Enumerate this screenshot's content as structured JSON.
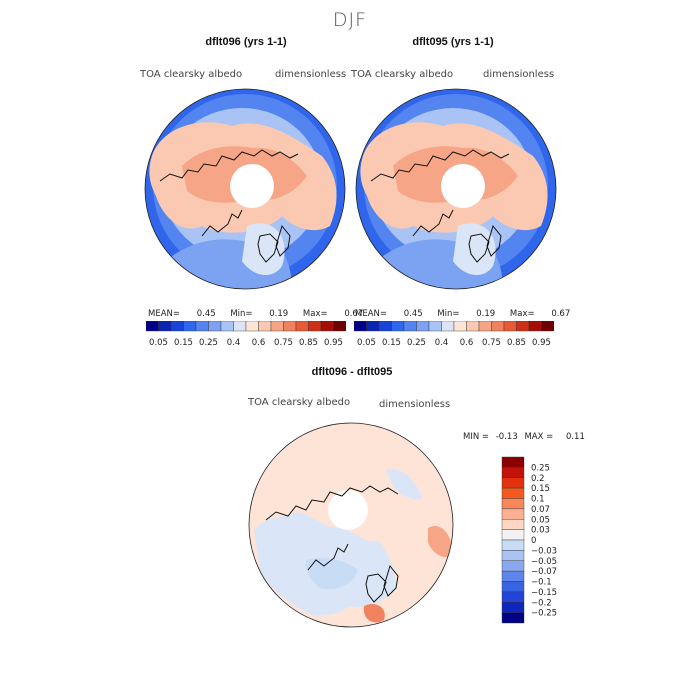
{
  "season": "DJF",
  "panels": [
    {
      "id": "a",
      "title": "dflt096 (yrs 1-1)",
      "variable": "TOA clearsky albedo",
      "units": "dimensionless",
      "stats": {
        "mean_label": "MEAN=",
        "mean": "0.45",
        "min_label": "Min=",
        "min": "0.19",
        "max_label": "Max=",
        "max": "0.67"
      }
    },
    {
      "id": "b",
      "title": "dflt095 (yrs 1-1)",
      "variable": "TOA clearsky albedo",
      "units": "dimensionless",
      "stats": {
        "mean_label": "MEAN=",
        "mean": "0.45",
        "min_label": "Min=",
        "min": "0.19",
        "max_label": "Max=",
        "max": "0.67"
      }
    }
  ],
  "field_colorbar": {
    "colors": [
      "#00008b",
      "#0b24b4",
      "#1744d6",
      "#2f66ec",
      "#5484f0",
      "#7ca2f2",
      "#a9c4f4",
      "#dae6f7",
      "#fde4d6",
      "#fbc9b1",
      "#f6a586",
      "#f1825f",
      "#e85a37",
      "#cf2f16",
      "#a40f07",
      "#6e0000"
    ],
    "tick_labels": [
      "0.05",
      "0.15",
      "0.25",
      "0.4",
      "0.6",
      "0.75",
      "0.85",
      "0.95"
    ]
  },
  "difference_panel": {
    "title": "dflt096 - dflt095",
    "variable": "TOA clearsky albedo",
    "units": "dimensionless",
    "min_label": "MIN =",
    "min": "-0.13",
    "max_label": "MAX =",
    "max": "0.11"
  },
  "diff_colorbar": {
    "colors": [
      "#8b0000",
      "#c11307",
      "#e2310c",
      "#f45a20",
      "#f8875a",
      "#fbb094",
      "#fdd6c4",
      "#f2f2f2",
      "#c9dcf5",
      "#aac3f2",
      "#8aa8ef",
      "#5f85ea",
      "#3864e4",
      "#2344d8",
      "#0e25c0",
      "#000086"
    ],
    "tick_labels": [
      "0.25",
      "0.2",
      "0.15",
      "0.1",
      "0.07",
      "0.05",
      "0.03",
      "0",
      "−0.03",
      "−0.05",
      "−0.07",
      "−0.1",
      "−0.15",
      "−0.2",
      "−0.25"
    ]
  }
}
